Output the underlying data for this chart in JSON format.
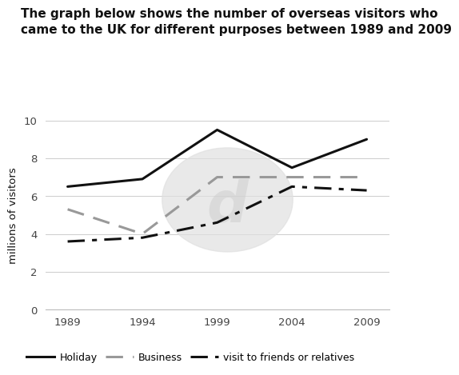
{
  "title": "The graph below shows the number of overseas visitors who\ncame to the UK for different purposes between 1989 and 2009",
  "years": [
    1989,
    1994,
    1999,
    2004,
    2009
  ],
  "holiday": [
    6.5,
    6.9,
    9.5,
    7.5,
    9.0
  ],
  "business": [
    5.3,
    4.0,
    7.0,
    7.0,
    7.0
  ],
  "friends": [
    3.6,
    3.8,
    4.6,
    6.5,
    6.3
  ],
  "ylabel": "millions of visitors",
  "ylim": [
    0,
    10
  ],
  "yticks": [
    0,
    2,
    4,
    6,
    8,
    10
  ],
  "xticks": [
    1989,
    1994,
    1999,
    2004,
    2009
  ],
  "holiday_color": "#111111",
  "business_color": "#999999",
  "friends_color": "#111111",
  "background_color": "#ffffff",
  "title_fontsize": 11.0,
  "axis_fontsize": 9.5,
  "ylabel_fontsize": 9.5
}
